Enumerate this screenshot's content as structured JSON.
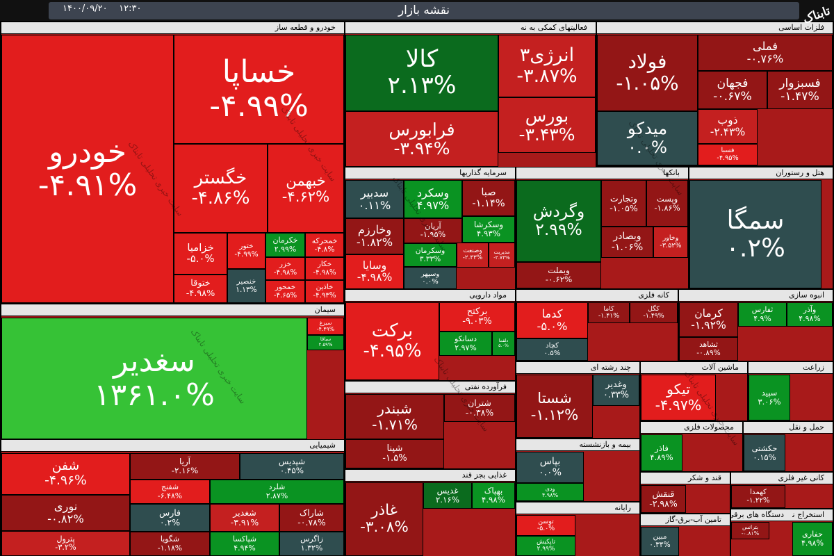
{
  "header": {
    "title": "نقشه بازار",
    "date": "۱۴۰۰/۰۹/۲۰",
    "time": "۱۲:۳۰",
    "logo": "تابناک",
    "watermark": "سایت خبری تحلیلی تابناک"
  },
  "sectors": [
    {
      "title": "خودرو و قطعه ساز",
      "tiles": [
        {
          "name": "خودرو",
          "change": "-۴.۹۱%"
        },
        {
          "name": "خساپا",
          "change": "-۴.۹۹%"
        },
        {
          "name": "خگستر",
          "change": "-۴.۸۶%"
        },
        {
          "name": "خبهمن",
          "change": "-۴.۶۲%"
        },
        {
          "name": "خزامیا",
          "change": "-۵.۰%"
        },
        {
          "name": "ختور",
          "change": "-۴.۹۹%"
        },
        {
          "name": "خکرمان",
          "change": "۲.۹۹%"
        },
        {
          "name": "خمحرکه",
          "change": "-۴.۸%"
        },
        {
          "name": "ختوقا",
          "change": "-۴.۹۸%"
        },
        {
          "name": "خنصیر",
          "change": "۱.۱۳%"
        },
        {
          "name": "خزر",
          "change": "-۴.۹۸%"
        },
        {
          "name": "خکار",
          "change": "-۴.۹۸%"
        },
        {
          "name": "خمحور",
          "change": "-۴.۶۵%"
        },
        {
          "name": "خاذین",
          "change": "-۴.۹۳%"
        }
      ]
    },
    {
      "title": "سیمان",
      "tiles": [
        {
          "name": "سغدیر",
          "change": "۱۳۶۱.۰%"
        },
        {
          "name": "سیزغ",
          "change": "-۴.۴۹%"
        },
        {
          "name": "سباقا",
          "change": "۲.۵۹%"
        }
      ]
    },
    {
      "title": "شیمیایی",
      "tiles": [
        {
          "name": "شفن",
          "change": "-۴.۹۶%"
        },
        {
          "name": "نوری",
          "change": "-۰.۸۲%"
        },
        {
          "name": "پترول",
          "change": "-۳.۲%"
        },
        {
          "name": "آریا",
          "change": "-۲.۱۶%"
        },
        {
          "name": "شفنج",
          "change": "-۶.۴۸%"
        },
        {
          "name": "فارس",
          "change": "۰.۲%"
        },
        {
          "name": "شگویا",
          "change": "-۱.۱۸%"
        },
        {
          "name": "شپدیس",
          "change": "۰.۴۵%"
        },
        {
          "name": "شلرد",
          "change": "۲.۸۷%"
        },
        {
          "name": "شغدیر",
          "change": "-۳.۹۱%"
        },
        {
          "name": "شاراک",
          "change": "-۰.۷۸%"
        },
        {
          "name": "شپاکسا",
          "change": "۴.۹۴%"
        },
        {
          "name": "زاگرس",
          "change": "۱.۳۲%"
        }
      ]
    },
    {
      "title": "فعالیتهای کمکی به نه",
      "tiles": [
        {
          "name": "کالا",
          "change": "۲.۱۳%"
        },
        {
          "name": "انرژی۳",
          "change": "-۳.۸۷%"
        },
        {
          "name": "فرابورس",
          "change": "-۳.۹۴%"
        },
        {
          "name": "بورس",
          "change": "-۳.۴۳%"
        }
      ]
    },
    {
      "title": "فلزات اساسی",
      "tiles": [
        {
          "name": "فولاد",
          "change": "-۱.۰۵%"
        },
        {
          "name": "فملی",
          "change": "-۰.۷۶%"
        },
        {
          "name": "فجهان",
          "change": "-۰.۶۷%"
        },
        {
          "name": "فسبزوار",
          "change": "-۱.۴۷%"
        },
        {
          "name": "میدکو",
          "change": "۰.۰%"
        },
        {
          "name": "ذوب",
          "change": "-۲.۴۳%"
        },
        {
          "name": "فسبا",
          "change": "-۴.۹۵%"
        }
      ]
    },
    {
      "title": "سرمایه گذاریها",
      "tiles": [
        {
          "name": "سدبیر",
          "change": "۰.۱۱%"
        },
        {
          "name": "وسکرد",
          "change": "۴.۹۷%"
        },
        {
          "name": "صبا",
          "change": "-۱.۱۴%"
        },
        {
          "name": "وخارزم",
          "change": "-۱.۸۲%"
        },
        {
          "name": "آریان",
          "change": "-۱.۹۵%"
        },
        {
          "name": "وسکرشا",
          "change": "۴.۹۳%"
        },
        {
          "name": "وسایا",
          "change": "-۴.۹۸%"
        },
        {
          "name": "وسکرمان",
          "change": "۳.۳۳%"
        },
        {
          "name": "وصنعت",
          "change": "-۲.۴۳%"
        },
        {
          "name": "مدیریت",
          "change": "-۲.۷۴%"
        },
        {
          "name": "وسپهر",
          "change": "۰.۰%"
        }
      ]
    },
    {
      "title": "بانکها",
      "tiles": [
        {
          "name": "وگردش",
          "change": "۲.۹۹%"
        },
        {
          "name": "وتجارت",
          "change": "-۱.۰۵%"
        },
        {
          "name": "وپست",
          "change": "-۱.۸۶%"
        },
        {
          "name": "وبصادر",
          "change": "-۱.۰۶%"
        },
        {
          "name": "وخاور",
          "change": "-۳.۵۲%"
        },
        {
          "name": "وبملت",
          "change": "-۰.۶۲%"
        }
      ]
    },
    {
      "title": "هتل و رستوران",
      "tiles": [
        {
          "name": "سمگا",
          "change": "۰.۲%"
        }
      ]
    },
    {
      "title": "مواد دارویی",
      "tiles": [
        {
          "name": "برکت",
          "change": "-۴.۹۵%"
        },
        {
          "name": "برکتح",
          "change": "-۹.۰۳%"
        },
        {
          "name": "دسانکو",
          "change": "۲.۹۷%"
        },
        {
          "name": "دلقما",
          "change": "۵.۰%"
        }
      ]
    },
    {
      "title": "کانه فلزی",
      "tiles": [
        {
          "name": "کدما",
          "change": "-۵.۰%"
        },
        {
          "name": "کاما",
          "change": "-۱.۴۱%"
        },
        {
          "name": "کگل",
          "change": "-۱.۴۹%"
        },
        {
          "name": "کچاد",
          "change": "۰.۵%"
        }
      ]
    },
    {
      "title": "انبوه سازی",
      "tiles": [
        {
          "name": "کرمان",
          "change": "-۱.۹۲%"
        },
        {
          "name": "ثفارس",
          "change": "۴.۹%"
        },
        {
          "name": "وآذر",
          "change": "۴.۹۸%"
        },
        {
          "name": "ثشاهد",
          "change": "-۰.۸۹%"
        }
      ]
    },
    {
      "title": "فرآورده نفتی",
      "tiles": [
        {
          "name": "شبندر",
          "change": "-۱.۷۱%"
        },
        {
          "name": "شتران",
          "change": "-۰.۳۸%"
        },
        {
          "name": "شپنا",
          "change": "-۱.۵%"
        }
      ]
    },
    {
      "title": "چند رشته ای",
      "tiles": [
        {
          "name": "شستا",
          "change": "-۱.۱۲%"
        },
        {
          "name": "وغدیر",
          "change": "۰.۳۳%"
        }
      ]
    },
    {
      "title": "ماشین آلات",
      "tiles": [
        {
          "name": "تیکو",
          "change": "-۴.۹۷%"
        }
      ]
    },
    {
      "title": "زراعت",
      "tiles": [
        {
          "name": "سپید",
          "change": "۳.۰۶%"
        }
      ]
    },
    {
      "title": "بیمه و بازنشسته",
      "tiles": [
        {
          "name": "بپاس",
          "change": "۰.۰%"
        },
        {
          "name": "ودی",
          "change": "۴.۹۸%"
        }
      ]
    },
    {
      "title": "محصولات فلزی",
      "tiles": [
        {
          "name": "فاذر",
          "change": "۴.۸۹%"
        }
      ]
    },
    {
      "title": "حمل و نقل",
      "tiles": [
        {
          "name": "حکشتی",
          "change": "۰.۱۵%"
        }
      ]
    },
    {
      "title": "غذایی بجز قند",
      "tiles": [
        {
          "name": "غاذر",
          "change": "-۳.۰۸%"
        },
        {
          "name": "غدیس",
          "change": "۲.۱۶%"
        },
        {
          "name": "بهپاک",
          "change": "۴.۹۸%"
        }
      ]
    },
    {
      "title": "رایانه",
      "tiles": [
        {
          "name": "توسن",
          "change": "-۵.۰%"
        },
        {
          "name": "تاپکیش",
          "change": "۲.۹۹%"
        }
      ]
    },
    {
      "title": "قند و شکر",
      "tiles": [
        {
          "name": "قنقش",
          "change": "-۲.۹۸%"
        }
      ]
    },
    {
      "title": "کانی غیر فلزی",
      "tiles": [
        {
          "name": "کهمدا",
          "change": "-۱.۲۲%"
        }
      ]
    },
    {
      "title": "تامین آب-برق-گاز",
      "tiles": [
        {
          "name": "مبین",
          "change": "۰.۳۴%"
        }
      ]
    },
    {
      "title": "دستگاه های برقی",
      "tiles": [
        {
          "name": "بترانس",
          "change": "-۰.۸۱%"
        }
      ]
    },
    {
      "title": "استخراج نفت",
      "tiles": [
        {
          "name": "حفاری",
          "change": "۴.۹۸%"
        }
      ]
    }
  ]
}
